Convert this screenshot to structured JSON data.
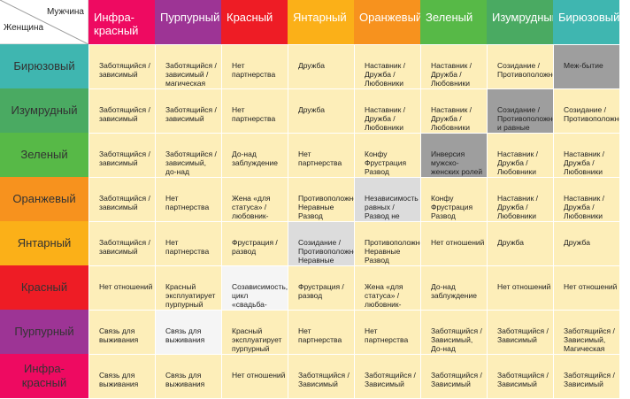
{
  "corner": {
    "man": "Мужчина",
    "woman": "Женщина"
  },
  "columns": [
    {
      "label": "Инфра-\nкрасный",
      "color": "#ee0a61"
    },
    {
      "label": "Пурпурный",
      "color": "#9d3495"
    },
    {
      "label": "Красный",
      "color": "#ee1c25"
    },
    {
      "label": "Янтарный",
      "color": "#fbb018"
    },
    {
      "label": "Оранжевый",
      "color": "#f7921e"
    },
    {
      "label": "Зеленый",
      "color": "#57b947"
    },
    {
      "label": "Изумрудный",
      "color": "#4aaa62"
    },
    {
      "label": "Бирюзовый",
      "color": "#3fb6b0"
    }
  ],
  "rows": [
    {
      "label": "Бирюзовый",
      "color": "#3fb6b0",
      "cells": [
        {
          "text": "Заботящийся /\nзависимый",
          "shade": ""
        },
        {
          "text": "Заботящийся /\nзависимый /\nмагическая связь",
          "shade": ""
        },
        {
          "text": "Нет партнерства",
          "shade": ""
        },
        {
          "text": "Дружба",
          "shade": ""
        },
        {
          "text": "Наставник /\nДружба /\nЛюбовники",
          "shade": ""
        },
        {
          "text": "Наставник /\nДружба /\nЛюбовники",
          "shade": ""
        },
        {
          "text": "Созидание /\nПротивоположности",
          "shade": ""
        },
        {
          "text": "Меж-бытие",
          "shade": "gray"
        }
      ]
    },
    {
      "label": "Изумрудный",
      "color": "#4aaa62",
      "cells": [
        {
          "text": "Заботящийся /\nзависимый",
          "shade": ""
        },
        {
          "text": "Заботящийся /\nзависимый",
          "shade": ""
        },
        {
          "text": "Нет партнерства",
          "shade": ""
        },
        {
          "text": "Дружба",
          "shade": ""
        },
        {
          "text": "Наставник /\nДружба /\nЛюбовники",
          "shade": ""
        },
        {
          "text": "Наставник /\nДружба /\nЛюбовники",
          "shade": ""
        },
        {
          "text": "Созидание /\nПротивоположности\nи равные",
          "shade": "gray"
        },
        {
          "text": "Созидание /\nПротивоположности",
          "shade": ""
        }
      ]
    },
    {
      "label": "Зеленый",
      "color": "#57b947",
      "cells": [
        {
          "text": "Заботящийся /\nзависимый",
          "shade": ""
        },
        {
          "text": "Заботящийся /\nзависимый,\nдо-над\nзаблуждение",
          "shade": ""
        },
        {
          "text": "До-над\nзаблуждение",
          "shade": ""
        },
        {
          "text": "Нет партнерства",
          "shade": ""
        },
        {
          "text": "Конфу\nФрустрация\nРазвод",
          "shade": ""
        },
        {
          "text": "Инверсия мужско-\nженских ролей\nРазвод",
          "shade": "gray"
        },
        {
          "text": "Наставник /\nДружба /\nЛюбовники",
          "shade": ""
        },
        {
          "text": "Наставник /\nДружба /\nЛюбовники",
          "shade": ""
        }
      ]
    },
    {
      "label": "Оранжевый",
      "color": "#f7921e",
      "cells": [
        {
          "text": "Заботящийся /\nзависимый",
          "shade": ""
        },
        {
          "text": "Нет партнерства",
          "shade": ""
        },
        {
          "text": "Жена «для статуса» /\nлюбовник-альфонс",
          "shade": ""
        },
        {
          "text": "Противоположности\nНеравные\nРазвод",
          "shade": ""
        },
        {
          "text": "Независимость\nравных /\nРазвод не\nпротивоположностей",
          "shade": "lightgray"
        },
        {
          "text": "Конфу\nФрустрация\nРазвод",
          "shade": ""
        },
        {
          "text": "Наставник /\nДружба /\nЛюбовники",
          "shade": ""
        },
        {
          "text": "Наставник /\nДружба /\nЛюбовники",
          "shade": ""
        }
      ]
    },
    {
      "label": "Янтарный",
      "color": "#fbb018",
      "cells": [
        {
          "text": "Заботящийся /\nзависимый",
          "shade": ""
        },
        {
          "text": "Нет партнерства",
          "shade": ""
        },
        {
          "text": "Фрустрация /\nразвод",
          "shade": ""
        },
        {
          "text": "Созидание /\nПротивоположности\nНеравные",
          "shade": "lightgray"
        },
        {
          "text": "Противоположности\nНеравные\nРазвод",
          "shade": ""
        },
        {
          "text": "Нет отношений",
          "shade": ""
        },
        {
          "text": "Дружба",
          "shade": ""
        },
        {
          "text": "Дружба",
          "shade": ""
        }
      ]
    },
    {
      "label": "Красный",
      "color": "#ee1c25",
      "cells": [
        {
          "text": "Нет отношений",
          "shade": ""
        },
        {
          "text": "Красный\nэксплуатирует\nпурпурный",
          "shade": ""
        },
        {
          "text": "Созависимость,\nцикл\n«свадьба-развод»",
          "shade": "white"
        },
        {
          "text": "Фрустрация /\nразвод",
          "shade": ""
        },
        {
          "text": "Жена «для статуса» /\nлюбовник-альфонс",
          "shade": ""
        },
        {
          "text": "До-над заблуждение",
          "shade": ""
        },
        {
          "text": "Нет отношений",
          "shade": ""
        },
        {
          "text": "Нет отношений",
          "shade": ""
        }
      ]
    },
    {
      "label": "Пурпурный",
      "color": "#9d3495",
      "cells": [
        {
          "text": "Связь для\nвыживания",
          "shade": ""
        },
        {
          "text": "Связь для\nвыживания",
          "shade": "white"
        },
        {
          "text": "Красный\nэксплуатирует\nпурпурный",
          "shade": ""
        },
        {
          "text": "Нет партнерства",
          "shade": ""
        },
        {
          "text": "Нет партнерства",
          "shade": ""
        },
        {
          "text": "Заботящийся /\nЗависимый,\nДо-над заблуждение",
          "shade": ""
        },
        {
          "text": "Заботящийся /\nЗависимый",
          "shade": ""
        },
        {
          "text": "Заботящийся /\nЗависимый,\nМагическая связь",
          "shade": ""
        }
      ]
    },
    {
      "label": "Инфра-\nкрасный",
      "color": "#ee0a61",
      "cells": [
        {
          "text": "Связь для\nвыживания",
          "shade": ""
        },
        {
          "text": "Связь для\nвыживания",
          "shade": ""
        },
        {
          "text": "Нет отношений",
          "shade": ""
        },
        {
          "text": "Заботящийся /\nЗависимый",
          "shade": ""
        },
        {
          "text": "Заботящийся /\nЗависимый",
          "shade": ""
        },
        {
          "text": "Заботящийся /\nЗависимый",
          "shade": ""
        },
        {
          "text": "Заботящийся /\nЗависимый",
          "shade": ""
        },
        {
          "text": "Заботящийся /\nЗависимый",
          "shade": ""
        }
      ]
    }
  ]
}
